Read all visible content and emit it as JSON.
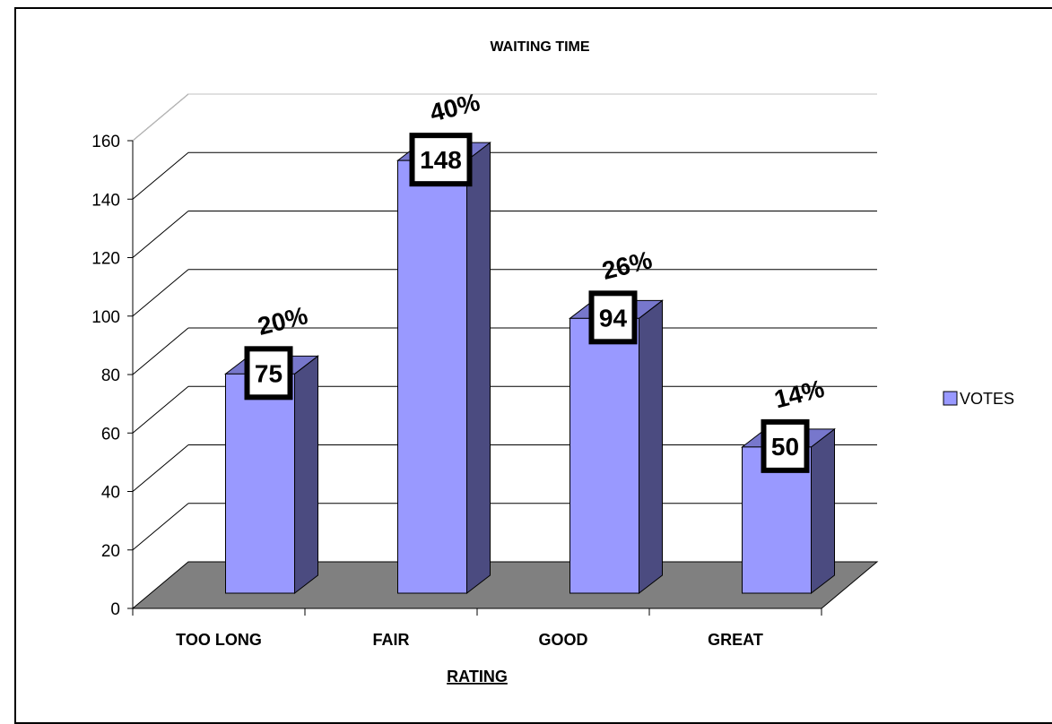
{
  "chart_data": {
    "type": "bar",
    "title": "WAITING TIME",
    "xlabel": "RATING",
    "ylabel": "",
    "categories": [
      "TOO LONG",
      "FAIR",
      "GOOD",
      "GREAT"
    ],
    "series": [
      {
        "name": "VOTES",
        "values": [
          75,
          148,
          94,
          50
        ],
        "color": "#9999ff",
        "side_color": "#4b4b80",
        "top_color": "#7777cc"
      }
    ],
    "percent_labels": [
      "20%",
      "40%",
      "26%",
      "14%"
    ],
    "ylim": [
      0,
      160
    ],
    "yticks": [
      "0",
      "20",
      "40",
      "60",
      "80",
      "100",
      "120",
      "140",
      "160"
    ],
    "grid": true,
    "legend_position": "right",
    "floor_color": "#808080",
    "three_d": true
  }
}
